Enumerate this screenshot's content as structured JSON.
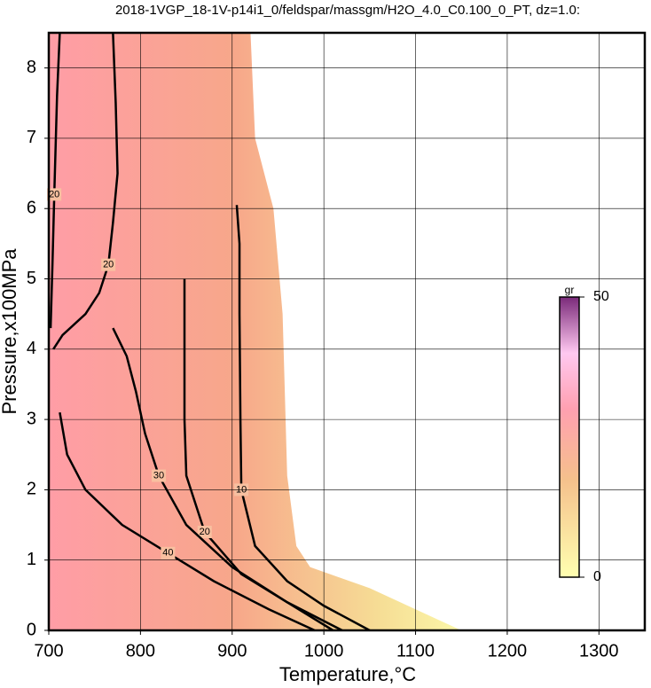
{
  "chart_data": {
    "type": "contour",
    "title": "2018-1VGP_18-1V-p14i1_0/feldspar/massgm/H2O_4.0_C0.100_0_PT, dz=1.0:",
    "x_label": "Temperature,°C",
    "y_label": "Pressure,x100MPa",
    "xlim": [
      700,
      1350
    ],
    "ylim": [
      0,
      8.5
    ],
    "xticks": [
      700,
      800,
      900,
      1000,
      1100,
      1200,
      1300
    ],
    "yticks": [
      0,
      1,
      2,
      3,
      4,
      5,
      6,
      7,
      8
    ],
    "grid": true,
    "field": {
      "x": [
        700,
        920,
        925,
        945,
        955,
        960,
        970,
        985,
        1050,
        1100,
        1150,
        700
      ],
      "y": [
        8.5,
        8.5,
        7,
        6,
        4.5,
        2.2,
        1.2,
        0.9,
        0.6,
        0.3,
        0,
        0
      ]
    },
    "contours": [
      {
        "level": 10,
        "x": [
          905,
          908,
          908,
          909,
          910,
          925,
          960,
          1000,
          1050
        ],
        "y": [
          6.05,
          5.5,
          4.5,
          3.0,
          2.0,
          1.2,
          0.7,
          0.35,
          0
        ]
      },
      {
        "level": 20,
        "x": [
          848,
          848,
          848,
          850,
          870,
          910,
          960,
          1010
        ],
        "y": [
          5.0,
          4.0,
          3.0,
          2.2,
          1.4,
          0.8,
          0.4,
          0
        ]
      },
      {
        "level": 20,
        "x": [
          770,
          773,
          775,
          770,
          765,
          755,
          740,
          715,
          705
        ],
        "y": [
          8.5,
          7.5,
          6.5,
          5.8,
          5.2,
          4.8,
          4.5,
          4.2,
          4.0
        ]
      },
      {
        "level": 20,
        "x": [
          712,
          709,
          706,
          704,
          702
        ],
        "y": [
          8.5,
          7.6,
          6.2,
          5.2,
          4.3
        ]
      },
      {
        "level": 30,
        "x": [
          770,
          785,
          795,
          805,
          820,
          850,
          900,
          960,
          1020
        ],
        "y": [
          4.3,
          3.9,
          3.4,
          2.8,
          2.2,
          1.5,
          0.9,
          0.4,
          0
        ]
      },
      {
        "level": 40,
        "x": [
          712,
          720,
          740,
          780,
          830,
          880,
          940,
          990
        ],
        "y": [
          3.1,
          2.5,
          2.0,
          1.5,
          1.1,
          0.7,
          0.3,
          0
        ]
      }
    ],
    "colorbar": {
      "label": "gr",
      "lim": [
        0,
        50
      ],
      "ticks": [
        0,
        50
      ]
    }
  }
}
